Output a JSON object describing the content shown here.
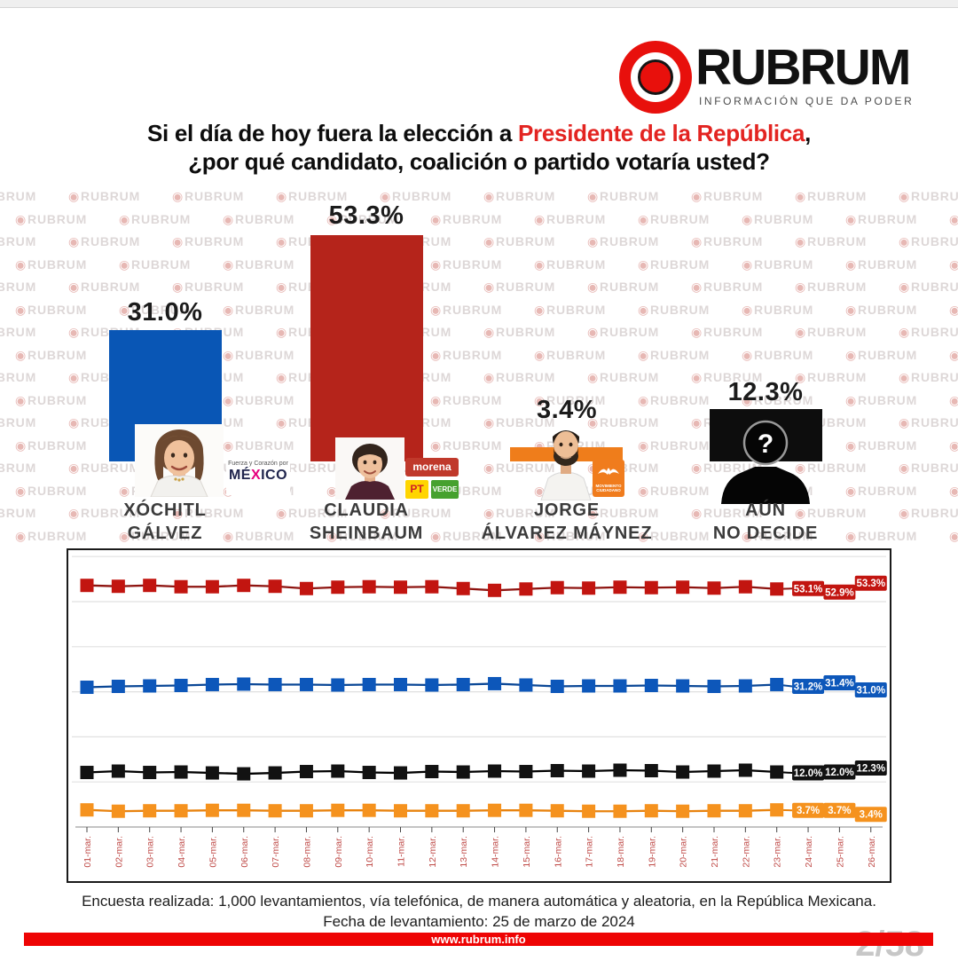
{
  "page": {
    "page_indicator": "2/58",
    "watermark_icon": "◉",
    "watermark_text": "RUBRUM"
  },
  "logo": {
    "brand": "RUBRUM",
    "tagline": "INFORMACIÓN QUE DA PODER"
  },
  "title": {
    "line1_prefix": "Si el día de hoy fuera la elección a ",
    "line1_highlight": "Presidente de la República",
    "line1_suffix": ",",
    "line2": "¿por qué candidato, coalición o partido votaría usted?"
  },
  "bar_chart": {
    "baseline_pct_scale": 4.784,
    "candidates": [
      {
        "name_line1": "XÓCHITL",
        "name_line2": "GÁLVEZ",
        "value": 31.0,
        "value_label": "31.0%",
        "color": "#0956b5",
        "party": "Fuerza y Corazón por México"
      },
      {
        "name_line1": "CLAUDIA",
        "name_line2": "SHEINBAUM",
        "value": 53.3,
        "value_label": "53.3%",
        "color": "#b5241b",
        "party": "morena / PT / Verde"
      },
      {
        "name_line1": "JORGE",
        "name_line2": "ÁLVAREZ MÁYNEZ",
        "value": 3.4,
        "value_label": "3.4%",
        "color": "#ef7d1b",
        "party": "Movimiento Ciudadano"
      },
      {
        "name_line1": "AÚN",
        "name_line2": "NO DECIDE",
        "value": 12.3,
        "value_label": "12.3%",
        "color": "#0d0d0d",
        "unknown_mark": "?"
      }
    ]
  },
  "logos": {
    "mx_line1": "Fuerza y Corazón por",
    "mx_a": "MÉ",
    "mx_x": "X",
    "mx_b": "ICO",
    "morena": "morena",
    "pt": "PT",
    "verde": "VERDE",
    "mc_line1": "MOVIMIENTO",
    "mc_line2": "CIUDADANO"
  },
  "chart_data": {
    "type": "line",
    "x_labels": [
      "01-mar.",
      "02-mar.",
      "03-mar.",
      "04-mar.",
      "05-mar.",
      "06-mar.",
      "07-mar.",
      "08-mar.",
      "09-mar.",
      "10-mar.",
      "11-mar.",
      "12-mar.",
      "13-mar.",
      "14-mar.",
      "15-mar.",
      "16-mar.",
      "17-mar.",
      "18-mar.",
      "19-mar.",
      "20-mar.",
      "21-mar.",
      "22-mar.",
      "23-mar.",
      "24-mar.",
      "25-mar.",
      "26-mar."
    ],
    "ylim": [
      0,
      60
    ],
    "grid_step": 10,
    "grid_on": true,
    "legend": "none",
    "series": [
      {
        "name": "Claudia Sheinbaum",
        "color": "#c21510",
        "line_color": "#8e1410",
        "values": [
          53.6,
          53.4,
          53.6,
          53.3,
          53.3,
          53.6,
          53.4,
          52.9,
          53.2,
          53.3,
          53.2,
          53.3,
          52.9,
          52.5,
          52.8,
          53.1,
          53.0,
          53.2,
          53.1,
          53.2,
          53.0,
          53.3,
          52.8
        ],
        "end_values": [
          53.1,
          52.9,
          53.3
        ],
        "end_labels": [
          "53.1%",
          "52.9%",
          "53.3%"
        ]
      },
      {
        "name": "Xóchitl Gálvez",
        "color": "#0d57ba",
        "line_color": "#0a4796",
        "values": [
          31.0,
          31.2,
          31.3,
          31.4,
          31.6,
          31.7,
          31.6,
          31.6,
          31.5,
          31.6,
          31.6,
          31.5,
          31.6,
          31.8,
          31.5,
          31.2,
          31.3,
          31.3,
          31.4,
          31.3,
          31.2,
          31.3,
          31.6
        ],
        "end_values": [
          31.2,
          31.4,
          31.0
        ],
        "end_labels": [
          "31.2%",
          "31.4%",
          "31.0%"
        ]
      },
      {
        "name": "Aún no decide",
        "color": "#121212",
        "line_color": "#000000",
        "values": [
          12.1,
          12.4,
          12.1,
          12.2,
          12.0,
          11.8,
          12.0,
          12.3,
          12.4,
          12.1,
          12.0,
          12.3,
          12.2,
          12.4,
          12.3,
          12.5,
          12.4,
          12.6,
          12.5,
          12.2,
          12.4,
          12.6,
          12.2
        ],
        "end_values": [
          12.0,
          12.0,
          12.3
        ],
        "end_labels": [
          "12.0%",
          "12.0%",
          "12.3%"
        ]
      },
      {
        "name": "Jorge Álvarez Máynez",
        "color": "#f5921e",
        "line_color": "#e8830f",
        "values": [
          3.8,
          3.5,
          3.6,
          3.6,
          3.7,
          3.7,
          3.6,
          3.6,
          3.7,
          3.7,
          3.6,
          3.6,
          3.6,
          3.7,
          3.7,
          3.6,
          3.5,
          3.5,
          3.6,
          3.5,
          3.6,
          3.6,
          3.8
        ],
        "end_values": [
          3.7,
          3.7,
          3.4
        ],
        "end_labels": [
          "3.7%",
          "3.7%",
          "3.4%"
        ]
      }
    ]
  },
  "footer": {
    "line1": "Encuesta realizada: 1,000 levantamientos, vía telefónica, de manera automática y aleatoria, en la República Mexicana.",
    "line2": "Fecha de levantamiento: 25 de marzo de 2024",
    "website": "www.rubrum.info"
  }
}
